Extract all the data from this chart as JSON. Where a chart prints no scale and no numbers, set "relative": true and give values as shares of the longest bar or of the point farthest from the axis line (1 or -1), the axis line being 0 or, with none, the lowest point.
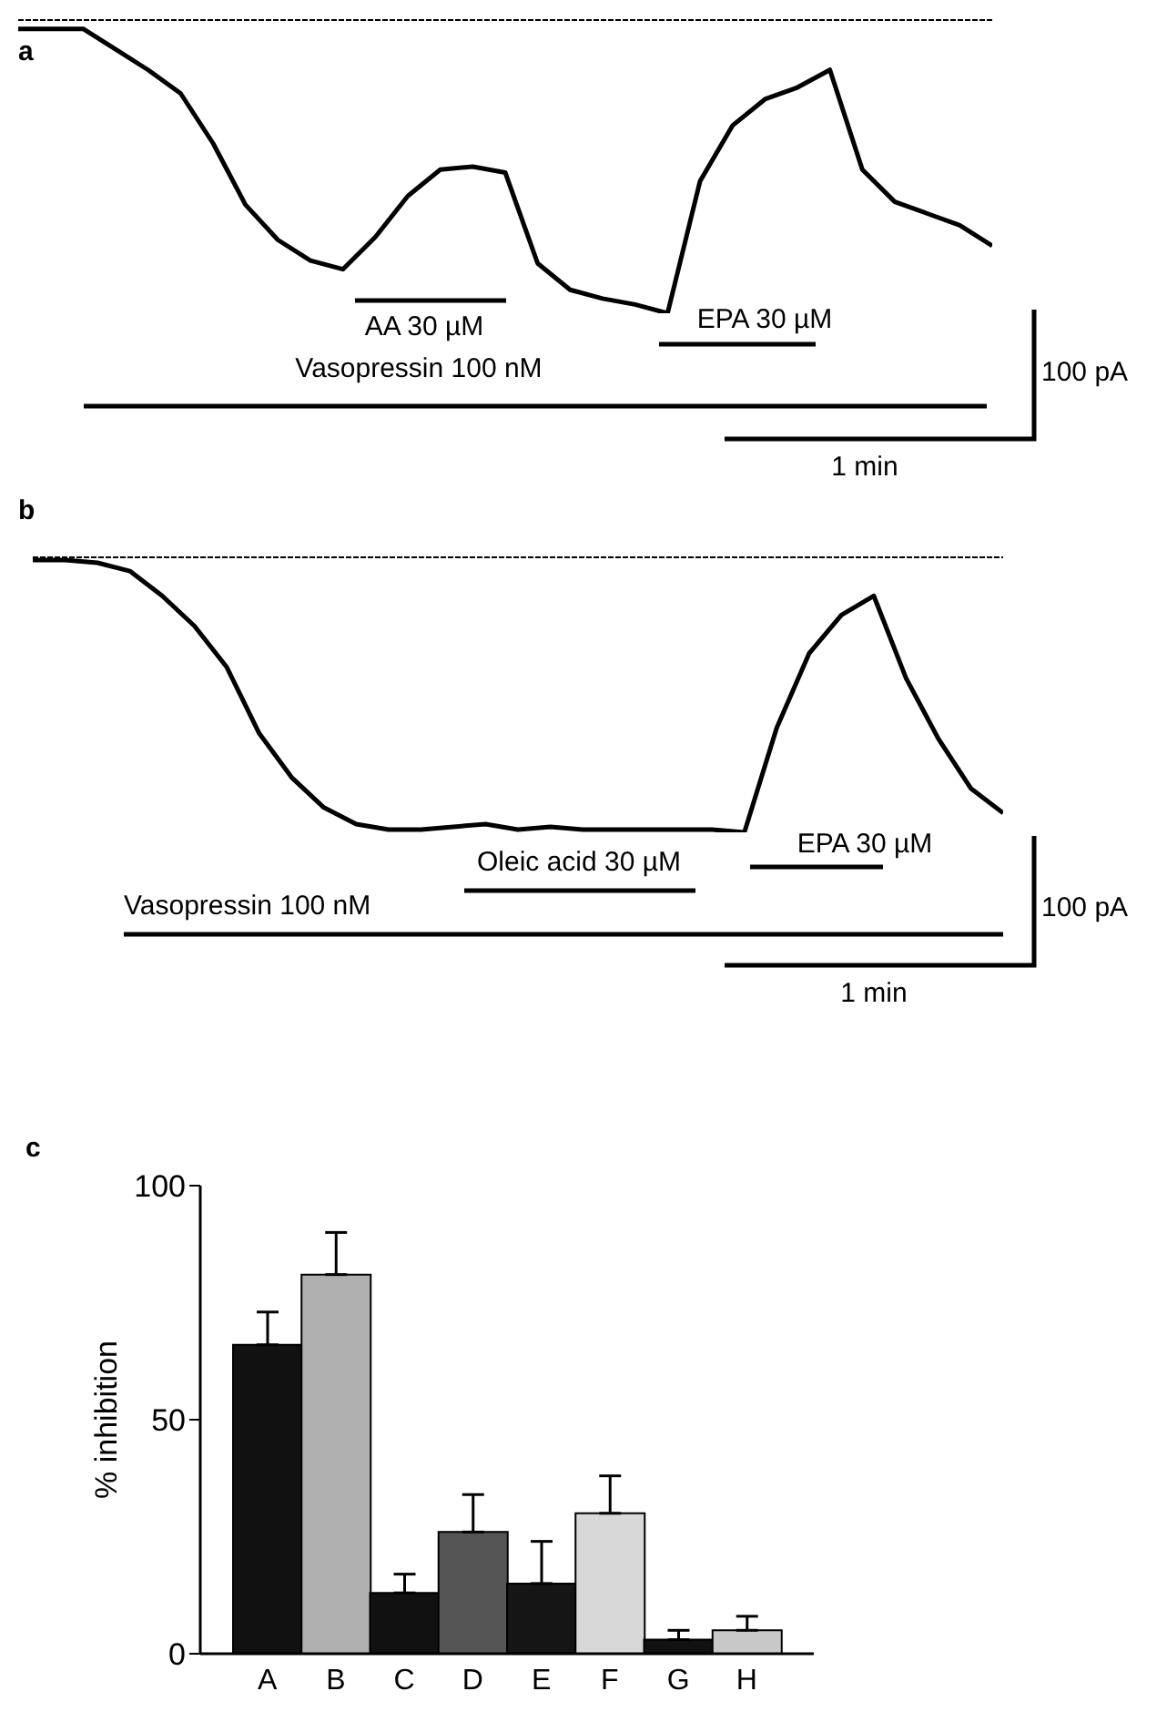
{
  "chart_data": [
    {
      "type": "line",
      "title": "a",
      "relative": true,
      "categories": [
        null,
        null,
        null,
        null,
        null,
        null,
        null,
        null,
        null,
        null,
        null,
        null,
        null,
        null,
        null,
        null,
        null,
        null,
        null,
        null,
        null,
        null,
        null,
        null,
        null,
        null,
        null,
        null,
        null,
        null,
        null
      ],
      "series": [
        {
          "color": "#000000",
          "values": [
            -0.03,
            -0.03,
            -0.03,
            -0.1,
            -0.17,
            -0.25,
            -0.42,
            -0.63,
            -0.75,
            -0.82,
            -0.85,
            -0.74,
            -0.6,
            -0.51,
            -0.5,
            -0.52,
            -0.83,
            -0.92,
            -0.95,
            -0.97,
            -1,
            -0.55,
            -0.36,
            -0.27,
            -0.23,
            -0.17,
            -0.51,
            -0.62,
            -0.66,
            -0.7,
            -0.77
          ]
        }
      ],
      "annotations": [
        "AA 30 µM",
        "EPA 30 µM",
        "Vasopressin 100 nM",
        "100 pA",
        "1 min"
      ],
      "marker": "none",
      "line_style": "solid",
      "grid": false,
      "legend": false
    },
    {
      "type": "line",
      "title": "b",
      "relative": true,
      "categories": [
        null,
        null,
        null,
        null,
        null,
        null,
        null,
        null,
        null,
        null,
        null,
        null,
        null,
        null,
        null,
        null,
        null,
        null,
        null,
        null,
        null,
        null,
        null,
        null,
        null,
        null,
        null,
        null,
        null,
        null,
        null
      ],
      "series": [
        {
          "color": "#000000",
          "values": [
            -0.01,
            -0.01,
            -0.02,
            -0.05,
            -0.14,
            -0.25,
            -0.4,
            -0.64,
            -0.8,
            -0.91,
            -0.97,
            -0.99,
            -0.99,
            -0.98,
            -0.97,
            -0.99,
            -0.98,
            -0.99,
            -0.99,
            -0.99,
            -0.99,
            -0.99,
            -1,
            -0.62,
            -0.35,
            -0.21,
            -0.14,
            -0.44,
            -0.66,
            -0.84,
            -0.93
          ]
        }
      ],
      "annotations": [
        "Oleic acid 30 µM",
        "EPA 30 µM",
        "Vasopressin 100 nM",
        "100 pA",
        "1 min"
      ],
      "marker": "none",
      "line_style": "solid",
      "grid": false,
      "legend": false
    },
    {
      "type": "bar",
      "title": "c",
      "ylabel": "% inhibition",
      "categories": [
        "A",
        "B",
        "C",
        "D",
        "E",
        "F",
        "G",
        "H"
      ],
      "values": [
        66,
        81,
        13,
        26,
        15,
        30,
        3,
        5
      ],
      "colors": [
        "#111111",
        "#b0b0b0",
        "#111111",
        "#555555",
        "#151515",
        "#d8d8d8",
        "#111111",
        "#c8c8c8"
      ],
      "errors": [
        [
          66,
          73
        ],
        [
          81,
          90
        ],
        [
          13,
          17
        ],
        [
          26,
          34
        ],
        [
          15,
          24
        ],
        [
          30,
          38
        ],
        [
          3,
          5
        ],
        [
          5,
          8
        ]
      ],
      "ylim": [
        0,
        100
      ],
      "yticks": [
        0,
        50,
        100
      ],
      "grid": false,
      "legend": false
    }
  ]
}
